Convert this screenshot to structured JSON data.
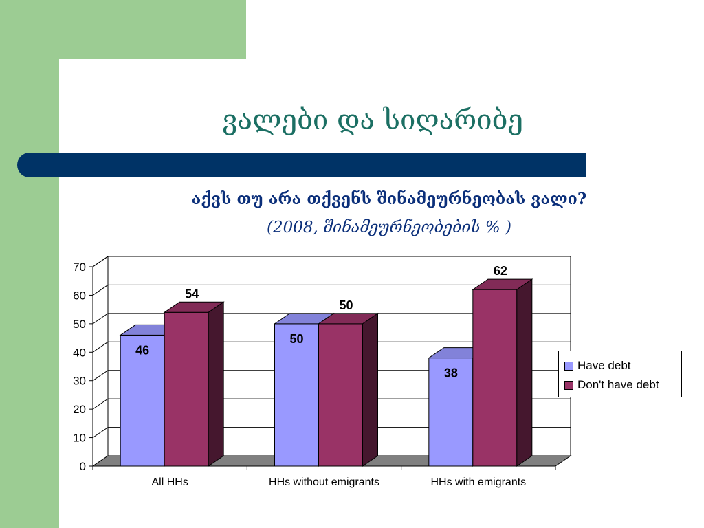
{
  "slide": {
    "title": "ვალები და სიღარიბე",
    "subtitle_line1": "აქვს თუ არა თქვენს შინამეურნეობას ვალი?",
    "subtitle_line2": "(2008, შინამეურნეობების % )"
  },
  "colors": {
    "green_band": "#9ccc93",
    "navy_band": "#003366",
    "series_have_debt": "#9999ff",
    "series_no_debt": "#993366"
  },
  "chart_data": {
    "type": "bar",
    "categories": [
      "All HHs",
      "HHs without emigrants",
      "HHs with emigrants"
    ],
    "series": [
      {
        "name": "Have debt",
        "values": [
          46,
          50,
          38
        ],
        "labels": [
          "46",
          "50",
          "38"
        ]
      },
      {
        "name": "Don't have debt",
        "values": [
          54,
          50,
          62
        ],
        "labels": [
          "54",
          "50",
          "62"
        ]
      }
    ],
    "ylim": [
      0,
      70
    ],
    "yticks": [
      0,
      10,
      20,
      30,
      40,
      50,
      60,
      70
    ],
    "grid": true,
    "legend_position": "right",
    "style": "3d-clustered-column"
  }
}
